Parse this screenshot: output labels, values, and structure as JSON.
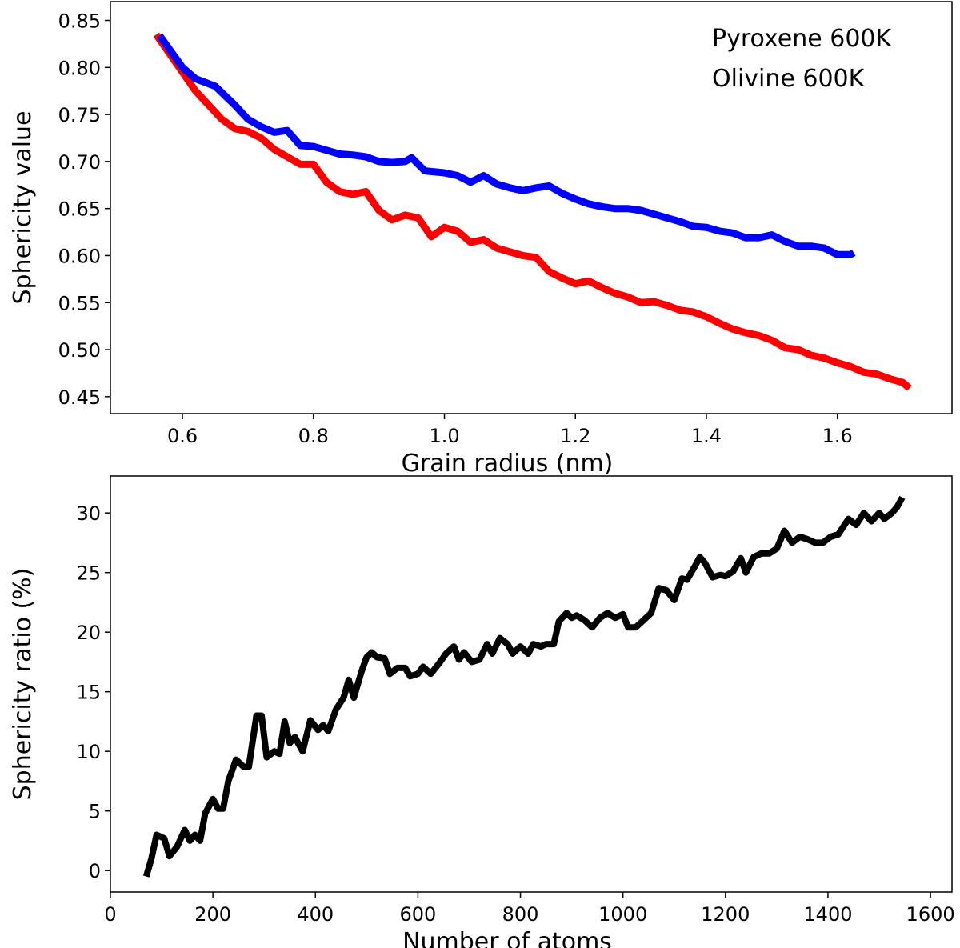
{
  "chart_data": [
    {
      "type": "line",
      "xlabel": "Grain radius (nm)",
      "ylabel": "Sphericity value",
      "xlim": [
        0.49,
        1.775
      ],
      "ylim": [
        0.432,
        0.87
      ],
      "xticks": [
        0.6,
        0.8,
        {
          "value": 1,
          "label": "1.0"
        },
        1.2,
        1.4,
        1.6
      ],
      "yticks": [
        0.45,
        {
          "value": 0.5,
          "label": "0.50"
        },
        0.55,
        {
          "value": 0.6,
          "label": "0.60"
        },
        0.65,
        {
          "value": 0.7,
          "label": "0.70"
        },
        0.75,
        {
          "value": 0.8,
          "label": "0.80"
        },
        0.85
      ],
      "legend": "upper right",
      "series": [
        {
          "name": "Pyroxene 600K",
          "color": "#ff0000",
          "x": [
            0.56,
            0.58,
            0.6,
            0.62,
            0.64,
            0.66,
            0.68,
            0.7,
            0.72,
            0.74,
            0.76,
            0.78,
            0.8,
            0.82,
            0.84,
            0.86,
            0.88,
            0.9,
            0.92,
            0.94,
            0.96,
            0.98,
            1.0,
            1.02,
            1.04,
            1.06,
            1.08,
            1.1,
            1.12,
            1.14,
            1.16,
            1.18,
            1.2,
            1.22,
            1.24,
            1.26,
            1.28,
            1.3,
            1.32,
            1.34,
            1.36,
            1.38,
            1.4,
            1.42,
            1.44,
            1.46,
            1.48,
            1.5,
            1.52,
            1.54,
            1.56,
            1.58,
            1.6,
            1.62,
            1.64,
            1.66,
            1.68,
            1.7,
            1.71
          ],
          "values": [
            0.835,
            0.815,
            0.795,
            0.775,
            0.76,
            0.745,
            0.735,
            0.732,
            0.725,
            0.713,
            0.705,
            0.697,
            0.697,
            0.678,
            0.668,
            0.665,
            0.668,
            0.648,
            0.638,
            0.643,
            0.64,
            0.62,
            0.63,
            0.626,
            0.614,
            0.617,
            0.608,
            0.604,
            0.6,
            0.598,
            0.583,
            0.576,
            0.57,
            0.573,
            0.566,
            0.56,
            0.556,
            0.55,
            0.551,
            0.547,
            0.542,
            0.54,
            0.535,
            0.528,
            0.522,
            0.518,
            0.515,
            0.51,
            0.502,
            0.5,
            0.494,
            0.491,
            0.486,
            0.482,
            0.476,
            0.474,
            0.469,
            0.465,
            0.459
          ]
        },
        {
          "name": "Olivine 600K",
          "color": "#0000ff",
          "x": [
            0.565,
            0.6,
            0.62,
            0.65,
            0.68,
            0.7,
            0.72,
            0.74,
            0.76,
            0.78,
            0.8,
            0.82,
            0.84,
            0.86,
            0.88,
            0.9,
            0.92,
            0.94,
            0.95,
            0.97,
            1.0,
            1.02,
            1.04,
            1.06,
            1.08,
            1.1,
            1.12,
            1.14,
            1.16,
            1.18,
            1.2,
            1.22,
            1.24,
            1.26,
            1.28,
            1.3,
            1.32,
            1.34,
            1.36,
            1.38,
            1.4,
            1.42,
            1.44,
            1.46,
            1.48,
            1.5,
            1.52,
            1.54,
            1.56,
            1.58,
            1.6,
            1.62,
            1.625
          ],
          "values": [
            0.834,
            0.8,
            0.788,
            0.78,
            0.76,
            0.745,
            0.737,
            0.731,
            0.733,
            0.717,
            0.716,
            0.712,
            0.708,
            0.707,
            0.705,
            0.7,
            0.699,
            0.7,
            0.704,
            0.69,
            0.688,
            0.685,
            0.678,
            0.685,
            0.676,
            0.672,
            0.669,
            0.672,
            0.674,
            0.666,
            0.66,
            0.655,
            0.652,
            0.65,
            0.65,
            0.648,
            0.644,
            0.64,
            0.636,
            0.631,
            0.63,
            0.626,
            0.624,
            0.619,
            0.619,
            0.622,
            0.615,
            0.61,
            0.61,
            0.608,
            0.601,
            0.601,
            0.603
          ]
        }
      ]
    },
    {
      "type": "line",
      "xlabel": "Number of atoms",
      "ylabel": "Sphericity ratio (%)",
      "xlim": [
        0,
        1642
      ],
      "ylim": [
        -1.8,
        33.1
      ],
      "xticks": [
        0,
        200,
        400,
        600,
        800,
        1000,
        1200,
        1400,
        1600
      ],
      "yticks": [
        0,
        5,
        10,
        15,
        20,
        25,
        30
      ],
      "color": "#000000",
      "x": [
        70,
        80,
        90,
        105,
        115,
        130,
        145,
        155,
        165,
        175,
        185,
        200,
        210,
        220,
        230,
        245,
        260,
        270,
        285,
        295,
        305,
        320,
        330,
        340,
        350,
        360,
        375,
        390,
        405,
        415,
        425,
        440,
        455,
        465,
        475,
        490,
        500,
        510,
        520,
        535,
        545,
        560,
        575,
        585,
        600,
        610,
        625,
        640,
        655,
        670,
        680,
        690,
        705,
        720,
        735,
        745,
        760,
        775,
        785,
        800,
        815,
        825,
        840,
        850,
        865,
        875,
        890,
        900,
        910,
        925,
        940,
        955,
        970,
        985,
        1000,
        1010,
        1025,
        1040,
        1055,
        1070,
        1085,
        1100,
        1115,
        1125,
        1140,
        1150,
        1160,
        1175,
        1190,
        1200,
        1215,
        1230,
        1240,
        1255,
        1270,
        1285,
        1300,
        1315,
        1330,
        1345,
        1360,
        1375,
        1390,
        1405,
        1420,
        1440,
        1455,
        1470,
        1485,
        1500,
        1510,
        1525,
        1535,
        1545
      ],
      "values": [
        -0.5,
        1,
        3,
        2.7,
        1.2,
        2,
        3.4,
        2.5,
        3,
        2.5,
        4.8,
        6,
        5.2,
        5.2,
        7.5,
        9.3,
        8.7,
        8.7,
        13,
        13,
        9.5,
        10,
        9.8,
        12.5,
        10.7,
        11.2,
        10,
        12.6,
        11.8,
        12.2,
        11.7,
        13.5,
        14.5,
        16,
        14.5,
        16.7,
        17.9,
        18.3,
        17.9,
        17.8,
        16.5,
        17,
        17,
        16.3,
        16.5,
        17.1,
        16.5,
        17.3,
        18.2,
        18.8,
        17.7,
        18.3,
        17.5,
        17.7,
        19,
        18.2,
        19.5,
        19,
        18.2,
        18.8,
        18.2,
        19,
        18.8,
        19,
        19,
        20.9,
        21.6,
        21.2,
        21.4,
        21,
        20.4,
        21.2,
        21.6,
        21.2,
        21.5,
        20.4,
        20.4,
        21,
        21.6,
        23.7,
        23.5,
        22.7,
        24.5,
        24.4,
        25.5,
        26.3,
        25.8,
        24.6,
        24.8,
        24.7,
        25.1,
        26.2,
        25,
        26.3,
        26.6,
        26.6,
        27,
        28.5,
        27.5,
        28,
        27.8,
        27.5,
        27.5,
        28,
        28.2,
        29.5,
        29,
        30,
        29.3,
        30,
        29.5,
        30,
        30.5,
        31.3
      ]
    }
  ]
}
